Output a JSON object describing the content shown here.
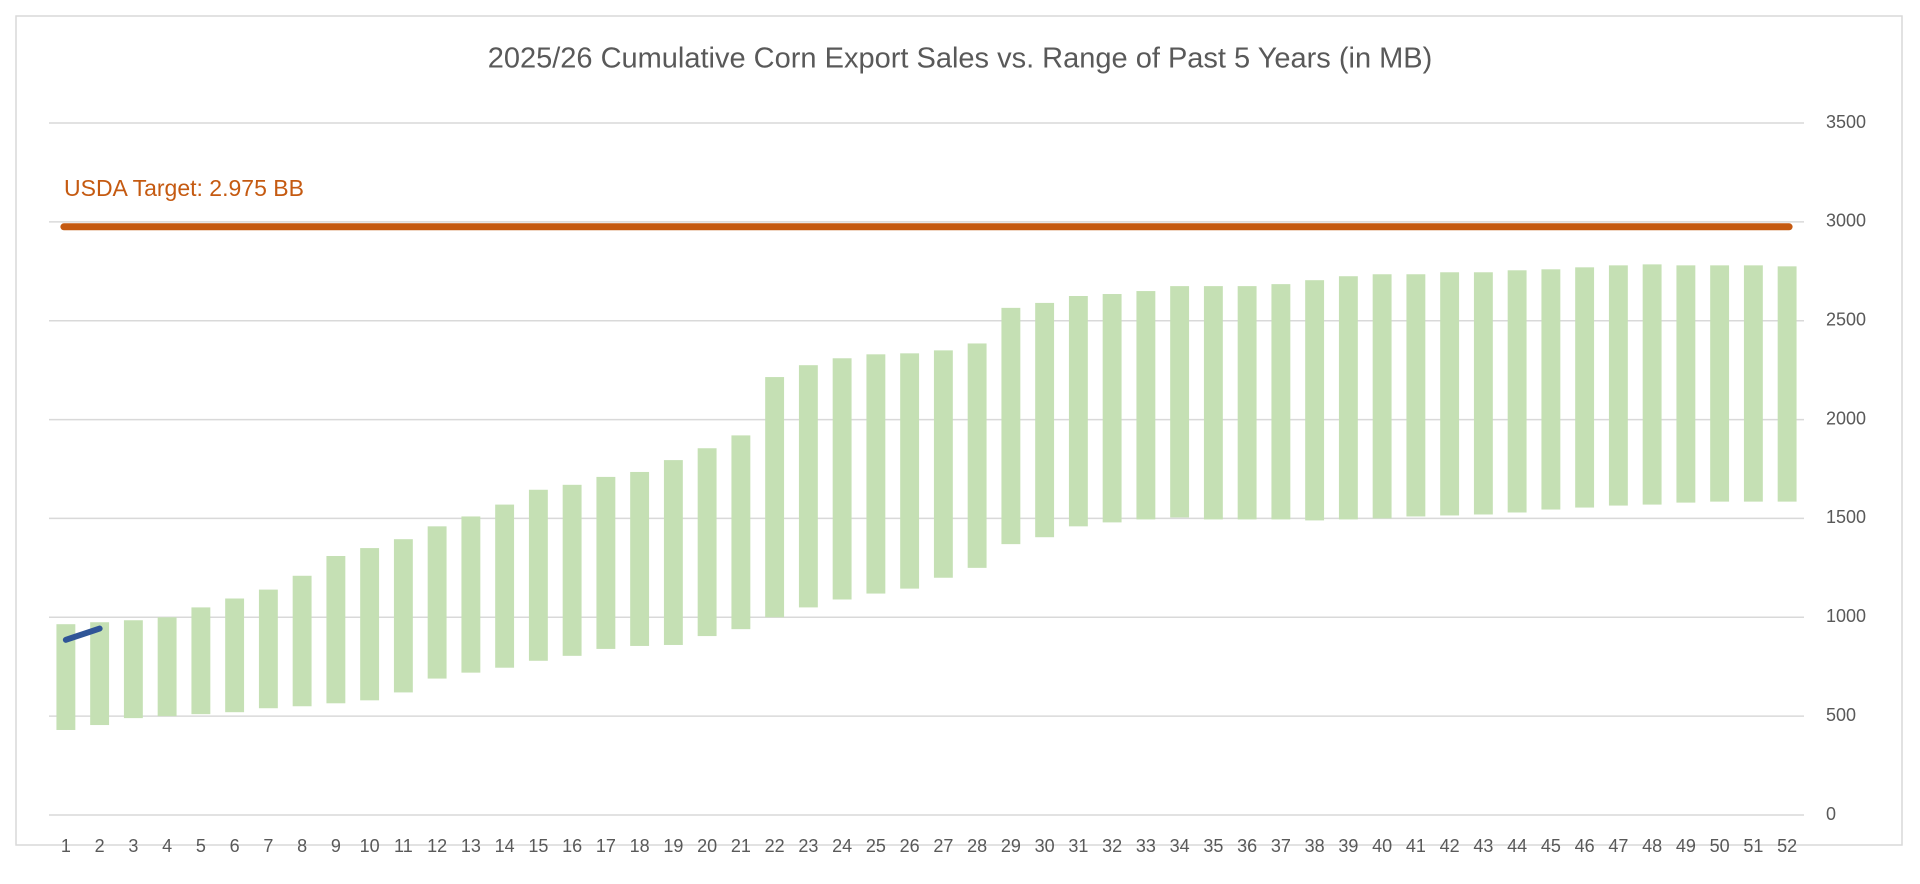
{
  "chart_data": {
    "type": "bar",
    "title": "2025/26 Cumulative Corn Export Sales vs. Range of Past 5 Years (in MB)",
    "categories": [
      "1",
      "2",
      "3",
      "4",
      "5",
      "6",
      "7",
      "8",
      "9",
      "10",
      "11",
      "12",
      "13",
      "14",
      "15",
      "16",
      "17",
      "18",
      "19",
      "20",
      "21",
      "22",
      "23",
      "24",
      "25",
      "26",
      "27",
      "28",
      "29",
      "30",
      "31",
      "32",
      "33",
      "34",
      "35",
      "36",
      "37",
      "38",
      "39",
      "40",
      "41",
      "42",
      "43",
      "44",
      "45",
      "46",
      "47",
      "48",
      "49",
      "50",
      "51",
      "52"
    ],
    "range": {
      "color": "#c5e0b4",
      "low": [
        430,
        455,
        490,
        500,
        510,
        520,
        540,
        550,
        565,
        580,
        620,
        690,
        720,
        745,
        780,
        805,
        840,
        855,
        860,
        905,
        940,
        1000,
        1050,
        1090,
        1120,
        1145,
        1200,
        1250,
        1370,
        1405,
        1460,
        1480,
        1495,
        1505,
        1495,
        1495,
        1495,
        1490,
        1495,
        1500,
        1510,
        1515,
        1520,
        1530,
        1545,
        1555,
        1565,
        1570,
        1580,
        1585,
        1585,
        1585
      ],
      "high": [
        965,
        975,
        985,
        1000,
        1050,
        1095,
        1140,
        1210,
        1310,
        1350,
        1395,
        1460,
        1510,
        1570,
        1645,
        1670,
        1710,
        1735,
        1795,
        1855,
        1920,
        2215,
        2275,
        2310,
        2330,
        2335,
        2350,
        2385,
        2565,
        2590,
        2625,
        2635,
        2650,
        2675,
        2675,
        2675,
        2685,
        2705,
        2725,
        2735,
        2735,
        2745,
        2745,
        2755,
        2760,
        2770,
        2780,
        2785,
        2780,
        2780,
        2780,
        2775
      ]
    },
    "series": [
      {
        "color": "#2f5597",
        "values": [
          886,
          943,
          null,
          null,
          null,
          null,
          null,
          null,
          null,
          null,
          null,
          null,
          null,
          null,
          null,
          null,
          null,
          null,
          null,
          null,
          null,
          null,
          null,
          null,
          null,
          null,
          null,
          null,
          null,
          null,
          null,
          null,
          null,
          null,
          null,
          null,
          null,
          null,
          null,
          null,
          null,
          null,
          null,
          null,
          null,
          null,
          null,
          null,
          null,
          null,
          null,
          null
        ]
      }
    ],
    "target": {
      "value": 2975,
      "label": "USDA Target: 2.975 BB",
      "color": "#c55a11"
    },
    "ylim": [
      0,
      3500
    ],
    "yticks": [
      0,
      500,
      1000,
      1500,
      2000,
      2500,
      3000,
      3500
    ],
    "grid": true,
    "y_axis_side": "right"
  }
}
